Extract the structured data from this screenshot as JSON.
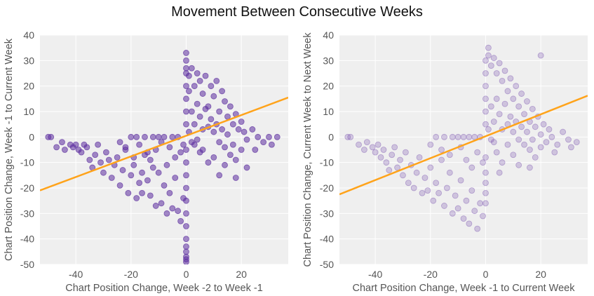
{
  "title": "Movement Between Consecutive Weeks",
  "chart_data": [
    {
      "type": "scatter",
      "xlabel": "Chart Position Change, Week -2 to Week -1",
      "ylabel": "Chart Position Change, Week -1 to Current Week",
      "xlim": [
        -53,
        37
      ],
      "ylim": [
        -50,
        40
      ],
      "xticks": [
        -40,
        -20,
        0,
        20
      ],
      "yticks": [
        40,
        30,
        20,
        10,
        0,
        -10,
        -20,
        -30,
        -40,
        -50
      ],
      "grid": true,
      "point_color": "#5b2c9e",
      "point_alpha": 0.55,
      "trend_color": "#ffa31a",
      "trend_line": {
        "slope": 0.405,
        "intercept": 0.5
      },
      "points": [
        [
          -50,
          0
        ],
        [
          -49,
          0
        ],
        [
          -47,
          -4
        ],
        [
          -45,
          -2
        ],
        [
          -44,
          -5
        ],
        [
          -42,
          -3
        ],
        [
          -41,
          -4
        ],
        [
          -40,
          -3
        ],
        [
          -39,
          -5
        ],
        [
          -38,
          -6
        ],
        [
          -37,
          -3
        ],
        [
          -36,
          -4
        ],
        [
          -35,
          -9
        ],
        [
          -34,
          -12
        ],
        [
          -33,
          -7
        ],
        [
          -32,
          -3
        ],
        [
          -31,
          -10
        ],
        [
          -30,
          -14
        ],
        [
          -29,
          -6
        ],
        [
          -28,
          -9
        ],
        [
          -27,
          -16
        ],
        [
          -26,
          -11
        ],
        [
          -25,
          -8
        ],
        [
          -24,
          -19
        ],
        [
          -23,
          -13
        ],
        [
          -22,
          -4
        ],
        [
          -21,
          -22
        ],
        [
          -20,
          -15
        ],
        [
          -19,
          -11
        ],
        [
          -18,
          -24
        ],
        [
          -17,
          -18
        ],
        [
          -16,
          -22
        ],
        [
          -15,
          -7
        ],
        [
          -14,
          -17
        ],
        [
          -13,
          -23
        ],
        [
          -12,
          -12
        ],
        [
          -11,
          -27
        ],
        [
          -10,
          -14
        ],
        [
          -9,
          -26
        ],
        [
          -8,
          -19
        ],
        [
          -7,
          -30
        ],
        [
          -6,
          -22
        ],
        [
          -5,
          -28
        ],
        [
          -4,
          -16
        ],
        [
          -3,
          -29
        ],
        [
          -2,
          -33
        ],
        [
          -1,
          -24
        ],
        [
          -20,
          0
        ],
        [
          -18,
          0
        ],
        [
          -15,
          0
        ],
        [
          -12,
          0
        ],
        [
          -10,
          0
        ],
        [
          -8,
          0
        ],
        [
          -5,
          0
        ],
        [
          -3,
          0
        ],
        [
          -24,
          -2
        ],
        [
          -22,
          -5
        ],
        [
          -17,
          -3
        ],
        [
          -14,
          -6
        ],
        [
          -9,
          -2
        ],
        [
          -6,
          -4
        ],
        [
          -19,
          -8
        ],
        [
          -13,
          -9
        ],
        [
          -11,
          -5
        ],
        [
          -7,
          -11
        ],
        [
          -16,
          -14
        ],
        [
          -4,
          -8
        ],
        [
          -2,
          -6
        ],
        [
          -1,
          -3
        ],
        [
          0,
          -5
        ],
        [
          0,
          -10
        ],
        [
          0,
          -15
        ],
        [
          0,
          -20
        ],
        [
          0,
          -25
        ],
        [
          0,
          -30
        ],
        [
          0,
          -35
        ],
        [
          0,
          -40
        ],
        [
          0,
          -43
        ],
        [
          0,
          -45
        ],
        [
          0,
          -47
        ],
        [
          0,
          -48
        ],
        [
          0,
          -49
        ],
        [
          0,
          5
        ],
        [
          0,
          10
        ],
        [
          0,
          15
        ],
        [
          0,
          20
        ],
        [
          0,
          25
        ],
        [
          0,
          27
        ],
        [
          0,
          30
        ],
        [
          0,
          33
        ],
        [
          1,
          18
        ],
        [
          1,
          24
        ],
        [
          2,
          27
        ],
        [
          3,
          20
        ],
        [
          4,
          25
        ],
        [
          5,
          22
        ],
        [
          6,
          17
        ],
        [
          7,
          24
        ],
        [
          8,
          12
        ],
        [
          9,
          20
        ],
        [
          10,
          16
        ],
        [
          11,
          22
        ],
        [
          12,
          10
        ],
        [
          13,
          18
        ],
        [
          14,
          14
        ],
        [
          15,
          8
        ],
        [
          16,
          12
        ],
        [
          17,
          5
        ],
        [
          18,
          9
        ],
        [
          19,
          3
        ],
        [
          20,
          6
        ],
        [
          21,
          2
        ],
        [
          22,
          -1
        ],
        [
          24,
          3
        ],
        [
          26,
          0
        ],
        [
          28,
          -2
        ],
        [
          30,
          0
        ],
        [
          31,
          -3
        ],
        [
          33,
          0
        ],
        [
          2,
          10
        ],
        [
          3,
          5
        ],
        [
          4,
          13
        ],
        [
          5,
          8
        ],
        [
          6,
          3
        ],
        [
          7,
          11
        ],
        [
          8,
          4
        ],
        [
          9,
          7
        ],
        [
          10,
          2
        ],
        [
          11,
          5
        ],
        [
          12,
          -2
        ],
        [
          13,
          3
        ],
        [
          14,
          -4
        ],
        [
          15,
          1
        ],
        [
          16,
          -7
        ],
        [
          17,
          -3
        ],
        [
          18,
          -9
        ],
        [
          20,
          -5
        ],
        [
          22,
          -12
        ],
        [
          12,
          -15
        ],
        [
          8,
          -10
        ],
        [
          5,
          -6
        ],
        [
          10,
          -8
        ],
        [
          3,
          -3
        ],
        [
          1,
          2
        ],
        [
          2,
          -2
        ],
        [
          4,
          -1
        ],
        [
          6,
          -5
        ],
        [
          14,
          -11
        ],
        [
          18,
          -16
        ],
        [
          25,
          -5
        ]
      ]
    },
    {
      "type": "scatter",
      "xlabel": "Chart Position Change, Week -1 to Current Week",
      "ylabel": "Chart Position Change, Current Week to Next Week",
      "xlim": [
        -53,
        37
      ],
      "ylim": [
        -50,
        40
      ],
      "xticks": [
        -40,
        -20,
        0,
        20
      ],
      "yticks": [
        40,
        30,
        20,
        10,
        0,
        -10,
        -20,
        -30,
        -40,
        -50
      ],
      "grid": true,
      "point_color": "#6b3fa8",
      "point_alpha": 0.25,
      "trend_color": "#ffa31a",
      "trend_line": {
        "slope": 0.43,
        "intercept": 0.3
      },
      "points": [
        [
          -50,
          0
        ],
        [
          -49,
          0
        ],
        [
          -46,
          -3
        ],
        [
          -44,
          -5
        ],
        [
          -43,
          -2
        ],
        [
          -41,
          -4
        ],
        [
          -40,
          -6
        ],
        [
          -39,
          -3
        ],
        [
          -38,
          -8
        ],
        [
          -37,
          -5
        ],
        [
          -36,
          -10
        ],
        [
          -35,
          -13
        ],
        [
          -34,
          -7
        ],
        [
          -33,
          -4
        ],
        [
          -32,
          -12
        ],
        [
          -31,
          -9
        ],
        [
          -30,
          -15
        ],
        [
          -29,
          -6
        ],
        [
          -28,
          -18
        ],
        [
          -27,
          -11
        ],
        [
          -26,
          -20
        ],
        [
          -25,
          -14
        ],
        [
          -24,
          -8
        ],
        [
          -23,
          -22
        ],
        [
          -22,
          -16
        ],
        [
          -21,
          -21
        ],
        [
          -20,
          -12
        ],
        [
          -19,
          -25
        ],
        [
          -18,
          -18
        ],
        [
          -17,
          -22
        ],
        [
          -16,
          -9
        ],
        [
          -15,
          -27
        ],
        [
          -14,
          -20
        ],
        [
          -13,
          -14
        ],
        [
          -12,
          -30
        ],
        [
          -11,
          -23
        ],
        [
          -10,
          -28
        ],
        [
          -9,
          -17
        ],
        [
          -8,
          -32
        ],
        [
          -7,
          -25
        ],
        [
          -6,
          -34
        ],
        [
          -5,
          -21
        ],
        [
          -4,
          -29
        ],
        [
          -3,
          -36
        ],
        [
          -2,
          -26
        ],
        [
          -1,
          -31
        ],
        [
          -18,
          0
        ],
        [
          -15,
          0
        ],
        [
          -12,
          0
        ],
        [
          -10,
          0
        ],
        [
          -8,
          0
        ],
        [
          -6,
          0
        ],
        [
          -4,
          0
        ],
        [
          -2,
          0
        ],
        [
          -20,
          -3
        ],
        [
          -16,
          -5
        ],
        [
          -13,
          -7
        ],
        [
          -9,
          -4
        ],
        [
          -7,
          -9
        ],
        [
          -5,
          -12
        ],
        [
          -3,
          -6
        ],
        [
          -1,
          -10
        ],
        [
          0,
          -8
        ],
        [
          0,
          -14
        ],
        [
          0,
          -18
        ],
        [
          0,
          -22
        ],
        [
          0,
          -26
        ],
        [
          0,
          5
        ],
        [
          0,
          10
        ],
        [
          0,
          15
        ],
        [
          0,
          20
        ],
        [
          0,
          25
        ],
        [
          0,
          30
        ],
        [
          1,
          35
        ],
        [
          1,
          32
        ],
        [
          2,
          28
        ],
        [
          3,
          31
        ],
        [
          4,
          25
        ],
        [
          5,
          29
        ],
        [
          6,
          22
        ],
        [
          7,
          26
        ],
        [
          8,
          18
        ],
        [
          9,
          23
        ],
        [
          10,
          15
        ],
        [
          11,
          20
        ],
        [
          12,
          12
        ],
        [
          13,
          17
        ],
        [
          14,
          9
        ],
        [
          15,
          14
        ],
        [
          16,
          6
        ],
        [
          17,
          11
        ],
        [
          18,
          4
        ],
        [
          19,
          8
        ],
        [
          20,
          1
        ],
        [
          21,
          5
        ],
        [
          22,
          -2
        ],
        [
          23,
          3
        ],
        [
          24,
          0
        ],
        [
          26,
          -3
        ],
        [
          28,
          2
        ],
        [
          30,
          -1
        ],
        [
          31,
          -4
        ],
        [
          33,
          -2
        ],
        [
          2,
          12
        ],
        [
          3,
          6
        ],
        [
          4,
          15
        ],
        [
          5,
          9
        ],
        [
          6,
          3
        ],
        [
          7,
          13
        ],
        [
          8,
          5
        ],
        [
          9,
          8
        ],
        [
          10,
          2
        ],
        [
          11,
          6
        ],
        [
          12,
          -1
        ],
        [
          13,
          4
        ],
        [
          14,
          -3
        ],
        [
          15,
          2
        ],
        [
          16,
          -5
        ],
        [
          17,
          -1
        ],
        [
          18,
          -8
        ],
        [
          20,
          -4
        ],
        [
          4,
          -6
        ],
        [
          6,
          -10
        ],
        [
          8,
          -3
        ],
        [
          10,
          -7
        ],
        [
          3,
          -2
        ],
        [
          1,
          3
        ],
        [
          2,
          -1
        ],
        [
          20,
          32
        ],
        [
          5,
          -14
        ],
        [
          12,
          -11
        ],
        [
          16,
          -12
        ],
        [
          25,
          -6
        ]
      ]
    }
  ]
}
